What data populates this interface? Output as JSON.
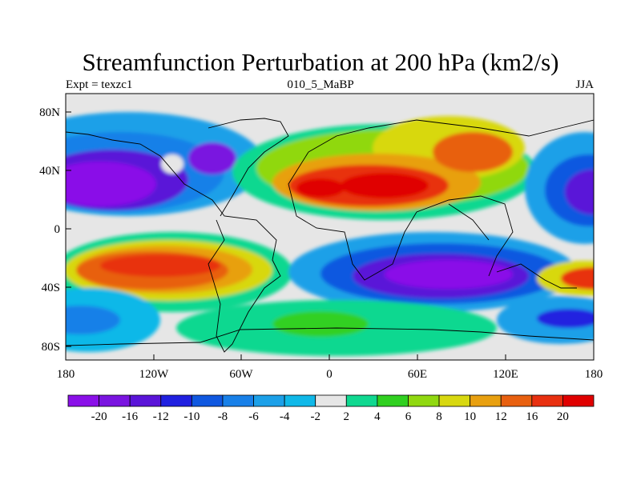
{
  "title": "Streamfunction Perturbation at 200 hPa (km2/s)",
  "left_string": "Expt = texzc1",
  "center_string": "010_5_MaBP",
  "right_string": "JJA",
  "chart_data": {
    "type": "heatmap",
    "x_ticks": [
      "180",
      "120W",
      "60W",
      "0",
      "60E",
      "120E",
      "180"
    ],
    "y_ticks": [
      "80N",
      "40N",
      "0",
      "40S",
      "80S"
    ],
    "colorbar": {
      "labels": [
        "-20",
        "-16",
        "-12",
        "-10",
        "-8",
        "-6",
        "-4",
        "-2",
        "2",
        "4",
        "6",
        "8",
        "10",
        "12",
        "16",
        "20"
      ],
      "colors": [
        "#8a10e8",
        "#7a14e0",
        "#5a14d8",
        "#2020e0",
        "#1058e0",
        "#1880e8",
        "#1ca0e8",
        "#10b8e8",
        "#e6e6e6",
        "#10d890",
        "#30d020",
        "#90d810",
        "#d8d810",
        "#e8a010",
        "#e86010",
        "#e83010",
        "#e00000"
      ]
    }
  }
}
